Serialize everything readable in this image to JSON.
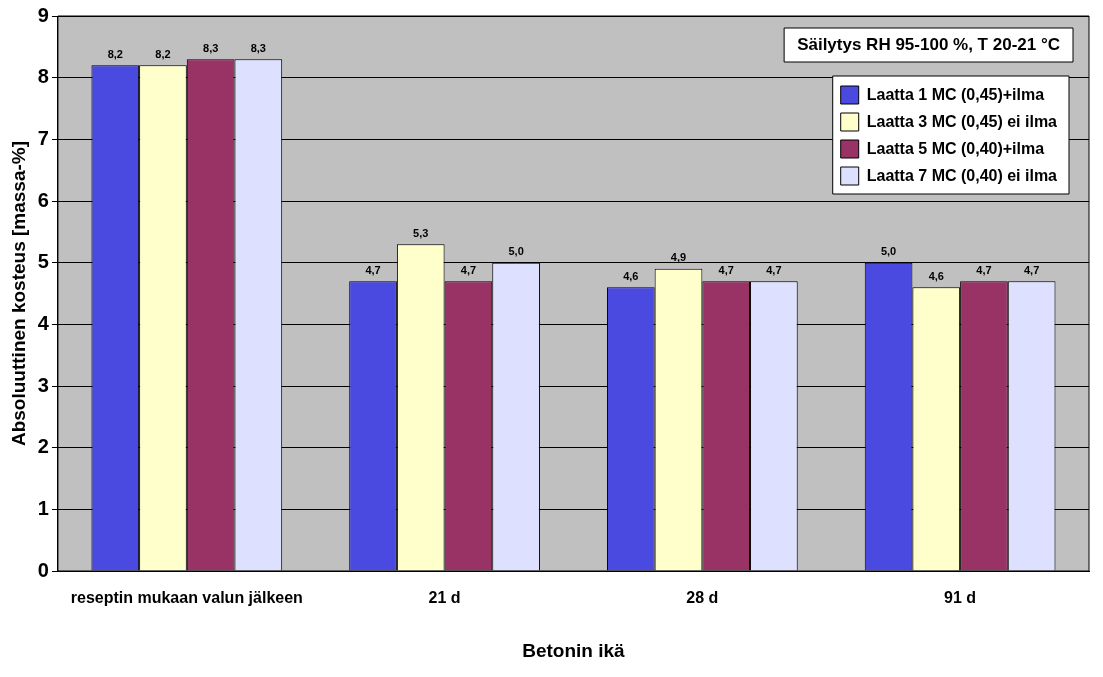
{
  "chart_data": {
    "type": "bar",
    "xlabel": "Betonin ikä",
    "ylabel": "Absoluuttinen kosteus [massa-%]",
    "categories": [
      "reseptin mukaan valun jälkeen",
      "21 d",
      "28 d",
      "91 d"
    ],
    "series": [
      {
        "name": "Laatta 1 MC (0,45)+ilma",
        "color": "#4a4ae0",
        "values": [
          8.2,
          4.7,
          4.6,
          5.0
        ],
        "value_labels": [
          "8,2",
          "4,7",
          "4,6",
          "5,0"
        ]
      },
      {
        "name": "Laatta 3 MC (0,45) ei ilma",
        "color": "#ffffcc",
        "values": [
          8.2,
          5.3,
          4.9,
          4.6
        ],
        "value_labels": [
          "8,2",
          "5,3",
          "4,9",
          "4,6"
        ]
      },
      {
        "name": "Laatta 5 MC (0,40)+ilma",
        "color": "#993366",
        "values": [
          8.3,
          4.7,
          4.7,
          4.7
        ],
        "value_labels": [
          "8,3",
          "4,7",
          "4,7",
          "4,7"
        ]
      },
      {
        "name": "Laatta 7 MC (0,40) ei ilma",
        "color": "#dde0ff",
        "values": [
          8.3,
          5.0,
          4.7,
          4.7
        ],
        "value_labels": [
          "8,3",
          "5,0",
          "4,7",
          "4,7"
        ]
      }
    ],
    "ylim": [
      0,
      9
    ],
    "yticks": [
      0,
      1,
      2,
      3,
      4,
      5,
      6,
      7,
      8,
      9
    ],
    "grid": "y",
    "legend": "top right",
    "annotations": [
      "Säilytys RH 95-100 %, T 20-21 °C"
    ]
  }
}
